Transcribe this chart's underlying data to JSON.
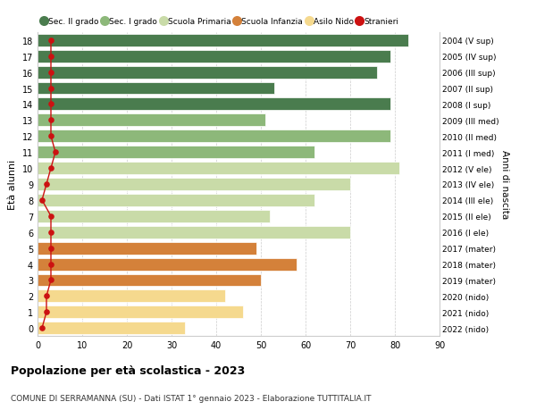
{
  "ages": [
    0,
    1,
    2,
    3,
    4,
    5,
    6,
    7,
    8,
    9,
    10,
    11,
    12,
    13,
    14,
    15,
    16,
    17,
    18
  ],
  "values": [
    33,
    46,
    42,
    50,
    58,
    49,
    70,
    52,
    62,
    70,
    81,
    62,
    79,
    51,
    79,
    53,
    76,
    79,
    83
  ],
  "stranieri": [
    1,
    2,
    2,
    3,
    3,
    3,
    3,
    3,
    1,
    2,
    3,
    4,
    3,
    3,
    3,
    3,
    3,
    3,
    3
  ],
  "right_labels": [
    "2022 (nido)",
    "2021 (nido)",
    "2020 (nido)",
    "2019 (mater)",
    "2018 (mater)",
    "2017 (mater)",
    "2016 (I ele)",
    "2015 (II ele)",
    "2014 (III ele)",
    "2013 (IV ele)",
    "2012 (V ele)",
    "2011 (I med)",
    "2010 (II med)",
    "2009 (III med)",
    "2008 (I sup)",
    "2007 (II sup)",
    "2006 (III sup)",
    "2005 (IV sup)",
    "2004 (V sup)"
  ],
  "bar_colors": [
    "#f5d98e",
    "#f5d98e",
    "#f5d98e",
    "#d4813a",
    "#d4813a",
    "#d4813a",
    "#c9dba8",
    "#c9dba8",
    "#c9dba8",
    "#c9dba8",
    "#c9dba8",
    "#8db87a",
    "#8db87a",
    "#8db87a",
    "#4a7c4e",
    "#4a7c4e",
    "#4a7c4e",
    "#4a7c4e",
    "#4a7c4e"
  ],
  "legend_labels": [
    "Sec. II grado",
    "Sec. I grado",
    "Scuola Primaria",
    "Scuola Infanzia",
    "Asilo Nido",
    "Stranieri"
  ],
  "legend_colors": [
    "#4a7c4e",
    "#8db87a",
    "#c9dba8",
    "#d4813a",
    "#f5d98e",
    "#cc1111"
  ],
  "title": "Popolazione per età scolastica - 2023",
  "subtitle": "COMUNE DI SERRAMANNA (SU) - Dati ISTAT 1° gennaio 2023 - Elaborazione TUTTITALIA.IT",
  "ylabel": "Età alunni",
  "right_axis_label": "Anni di nascita",
  "xlim": [
    0,
    90
  ],
  "xticks": [
    0,
    10,
    20,
    30,
    40,
    50,
    60,
    70,
    80,
    90
  ],
  "background_color": "#ffffff",
  "stranieri_color": "#cc1111",
  "grid_color": "#cccccc"
}
